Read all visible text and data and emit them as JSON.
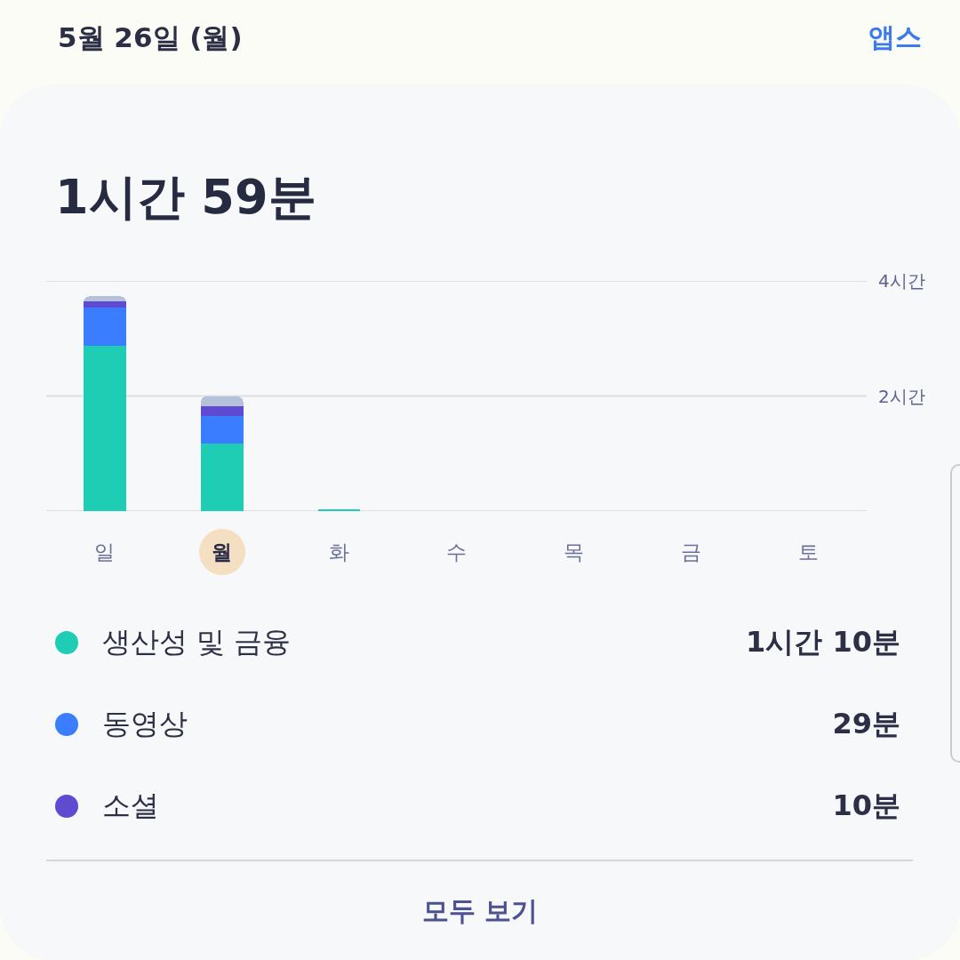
{
  "chart_data": {
    "type": "bar",
    "stacked": true,
    "subtitle": "5월 26일 (월)",
    "title": "1시간 59분",
    "categories": [
      "일",
      "월",
      "화",
      "수",
      "목",
      "금",
      "토"
    ],
    "series": [
      {
        "name": "생산성 및 금융",
        "color": "#1fcdb4",
        "values": [
          2.88,
          1.17,
          0.03,
          null,
          null,
          null,
          null
        ]
      },
      {
        "name": "동영상",
        "color": "#3a7dff",
        "values": [
          0.66,
          0.48,
          null,
          null,
          null,
          null,
          null
        ]
      },
      {
        "name": "소셜",
        "color": "#5e4bd1",
        "values": [
          0.11,
          0.17,
          null,
          null,
          null,
          null,
          null
        ]
      },
      {
        "color": "#b5c1d9",
        "values": [
          0.08,
          0.17,
          null,
          null,
          null,
          null,
          null
        ]
      }
    ],
    "ylim": [
      0,
      4
    ],
    "yticks": [
      {
        "value": 0,
        "label": null
      },
      {
        "value": 2,
        "label": "2시간"
      },
      {
        "value": 4,
        "label": "4시간"
      }
    ],
    "grid": "y",
    "legend": "bottom",
    "annotations": [
      "앱스",
      "1시간 10분",
      "29분",
      "10분",
      "모두 보기"
    ]
  }
}
